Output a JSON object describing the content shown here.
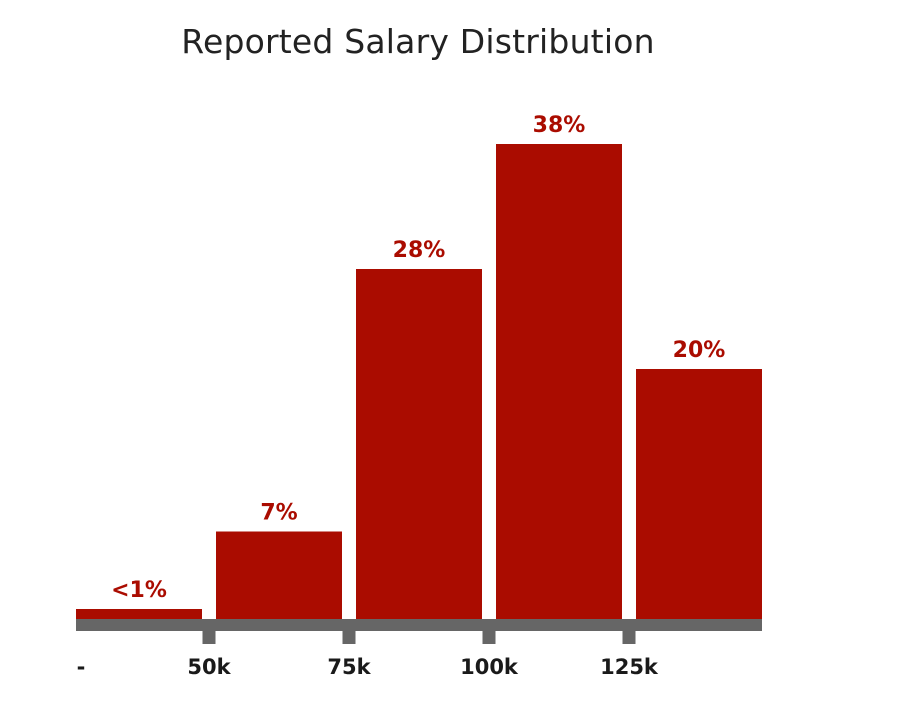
{
  "colors": {
    "bar": "#aa0c00",
    "axis": "#666666",
    "label": "#aa0c00"
  },
  "chart_data": {
    "type": "bar",
    "title": "Reported Salary Distribution",
    "xlabel": "",
    "ylabel": "",
    "ylim": [
      0,
      40
    ],
    "grid": false,
    "legend": "none",
    "x_tick_labels": [
      "-",
      "50k",
      "75k",
      "100k",
      "125k"
    ],
    "bins": [
      {
        "range": [
          "-",
          "50k"
        ],
        "value": 0.8,
        "label": "<1%"
      },
      {
        "range": [
          "50k",
          "75k"
        ],
        "value": 7,
        "label": "7%"
      },
      {
        "range": [
          "75k",
          "100k"
        ],
        "value": 28,
        "label": "28%"
      },
      {
        "range": [
          "100k",
          "125k"
        ],
        "value": 38,
        "label": "38%"
      },
      {
        "range": [
          "125k",
          ""
        ],
        "value": 20,
        "label": "20%"
      }
    ]
  }
}
